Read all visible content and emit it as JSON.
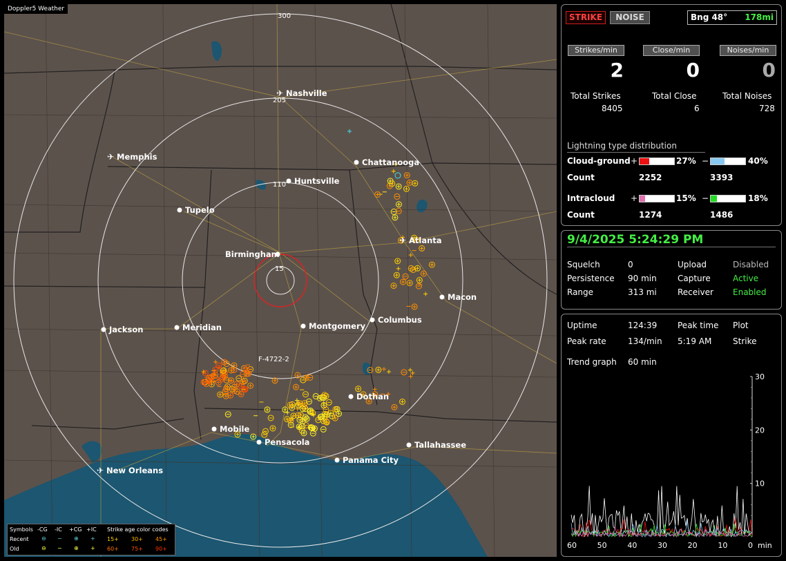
{
  "app_title": "Doppler5 Weather",
  "map": {
    "cities": [
      {
        "name": "Nashville",
        "airport": true
      },
      {
        "name": "Memphis",
        "airport": true
      },
      {
        "name": "Chattanooga",
        "airport": false
      },
      {
        "name": "Huntsville",
        "airport": false
      },
      {
        "name": "Tupelo",
        "airport": false
      },
      {
        "name": "Atlanta",
        "airport": true
      },
      {
        "name": "Birmingham",
        "airport": false
      },
      {
        "name": "Macon",
        "airport": false
      },
      {
        "name": "Jackson",
        "airport": false
      },
      {
        "name": "Meridian",
        "airport": false
      },
      {
        "name": "Montgomery",
        "airport": false
      },
      {
        "name": "Columbus",
        "airport": false
      },
      {
        "name": "Dothan",
        "airport": false
      },
      {
        "name": "Mobile",
        "airport": false
      },
      {
        "name": "Pensacola",
        "airport": false
      },
      {
        "name": "Tallahassee",
        "airport": false
      },
      {
        "name": "Panama City",
        "airport": false
      },
      {
        "name": "New Orleans",
        "airport": true
      }
    ],
    "ring_labels": [
      "300",
      "205",
      "110",
      "15"
    ],
    "station_id": "F-4722-2"
  },
  "legend": {
    "symbols_label": "Symbols",
    "columns": [
      "-CG",
      "-IC",
      "+CG",
      "+IC"
    ],
    "recent_label": "Recent",
    "old_label": "Old",
    "age_title": "Strike age color codes",
    "recent_ages": [
      "15+",
      "30+",
      "45+"
    ],
    "old_ages": [
      "60+",
      "75+",
      "90+"
    ]
  },
  "status": {
    "strike_button": "STRIKE",
    "noise_button": "NOISE",
    "bearing": "Bng 48°",
    "distance": "178mi",
    "strikes_per_min_label": "Strikes/min",
    "close_per_min_label": "Close/min",
    "noises_per_min_label": "Noises/min",
    "strikes_per_min": "2",
    "close_per_min": "0",
    "noises_per_min": "0",
    "total_strikes_label": "Total Strikes",
    "total_close_label": "Total Close",
    "total_noises_label": "Total Noises",
    "total_strikes": "8405",
    "total_close": "6",
    "total_noises": "728",
    "distribution_title": "Lightning type distribution",
    "cg_label": "Cloud-ground",
    "ic_label": "Intracloud",
    "count_label": "Count",
    "plus": "+",
    "minus": "−",
    "cg_pos_pct": "27%",
    "cg_neg_pct": "40%",
    "cg_pos_count": "2252",
    "cg_neg_count": "3393",
    "ic_pos_pct": "15%",
    "ic_neg_pct": "18%",
    "ic_pos_count": "1274",
    "ic_neg_count": "1486",
    "cg_pos_frac": 0.27,
    "cg_neg_frac": 0.4,
    "ic_pos_frac": 0.15,
    "ic_neg_frac": 0.18
  },
  "settings": {
    "datetime": "9/4/2025 5:24:29 PM",
    "squelch_label": "Squelch",
    "squelch": "0",
    "persistence_label": "Persistence",
    "persistence": "90 min",
    "range_label": "Range",
    "range": "313 mi",
    "upload_label": "Upload",
    "upload": "Disabled",
    "capture_label": "Capture",
    "capture": "Active",
    "receiver_label": "Receiver",
    "receiver": "Enabled"
  },
  "stats": {
    "uptime_label": "Uptime",
    "uptime": "124:39",
    "peak_time_label": "Peak time",
    "plot_label": "Plot",
    "peak_rate_label": "Peak rate",
    "peak_rate": "134/min",
    "peak_time": "5:19 AM",
    "plot": "Strike",
    "trend_label": "Trend graph",
    "trend_window": "60 min"
  },
  "chart_data": {
    "type": "line",
    "x_ticks": [
      "60",
      "50",
      "40",
      "30",
      "20",
      "10",
      "0"
    ],
    "x_unit": "min",
    "y_ticks": [
      "30",
      "20",
      "10"
    ],
    "ylim": [
      0,
      30
    ],
    "xlim": [
      60,
      0
    ]
  },
  "colors": {
    "map_bg": "#5c524c",
    "water": "#1c5670",
    "ring": "#e8e8e8",
    "close_ring": "#dd2222",
    "cg_pos": "#ee1111",
    "cg_neg": "#88c8f0",
    "ic_pos": "#e070b0",
    "ic_neg": "#22dd22"
  }
}
